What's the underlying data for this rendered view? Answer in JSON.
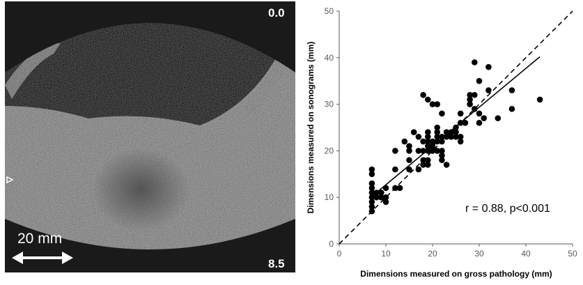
{
  "ultrasound": {
    "depth_top": "0.0",
    "depth_bottom": "8.5",
    "scale_label": "20 mm",
    "colors": {
      "background": "#1a1a1a",
      "tissue": "#7d7d7d",
      "text": "#ffffff"
    }
  },
  "chart_data": {
    "type": "scatter",
    "title": "",
    "xlabel": "Dimensions measured on gross pathology (mm)",
    "ylabel": "Dimensions measured on sonograms (mm)",
    "xlim": [
      0,
      50
    ],
    "ylim": [
      0,
      50
    ],
    "xticks": [
      "0",
      "10",
      "20",
      "30",
      "40",
      "50"
    ],
    "yticks": [
      "0",
      "10",
      "20",
      "30",
      "40",
      "50"
    ],
    "grid": false,
    "annotation": "r = 0.88, p<0.001",
    "identity_line": {
      "from": [
        0,
        0
      ],
      "to": [
        50,
        50
      ],
      "style": "dashed"
    },
    "regression_line": {
      "from": [
        7,
        10.2
      ],
      "to": [
        43,
        40.2
      ],
      "style": "solid"
    },
    "points": [
      [
        7,
        7
      ],
      [
        7,
        8
      ],
      [
        7,
        9
      ],
      [
        7,
        10
      ],
      [
        7,
        11
      ],
      [
        7,
        12
      ],
      [
        7,
        13
      ],
      [
        7,
        15
      ],
      [
        7,
        16
      ],
      [
        8,
        10
      ],
      [
        8,
        11
      ],
      [
        9,
        10
      ],
      [
        9,
        11
      ],
      [
        10,
        9
      ],
      [
        10,
        10
      ],
      [
        10,
        12
      ],
      [
        12,
        12
      ],
      [
        12,
        16
      ],
      [
        12,
        20
      ],
      [
        13,
        12
      ],
      [
        14,
        22
      ],
      [
        15,
        16
      ],
      [
        15,
        18
      ],
      [
        15,
        20
      ],
      [
        15,
        21
      ],
      [
        16,
        24
      ],
      [
        17,
        16
      ],
      [
        17,
        20
      ],
      [
        17,
        23
      ],
      [
        18,
        17
      ],
      [
        18,
        18
      ],
      [
        18,
        20
      ],
      [
        18,
        22
      ],
      [
        18,
        32
      ],
      [
        19,
        17
      ],
      [
        19,
        18
      ],
      [
        19,
        20
      ],
      [
        19,
        21
      ],
      [
        19,
        22
      ],
      [
        19,
        23
      ],
      [
        19,
        24
      ],
      [
        19,
        31
      ],
      [
        20,
        20
      ],
      [
        20,
        21
      ],
      [
        20,
        22
      ],
      [
        20,
        30
      ],
      [
        21,
        20
      ],
      [
        21,
        22
      ],
      [
        21,
        23
      ],
      [
        21,
        24
      ],
      [
        21,
        25
      ],
      [
        21,
        30
      ],
      [
        22,
        18
      ],
      [
        22,
        19
      ],
      [
        22,
        20
      ],
      [
        22,
        22
      ],
      [
        22,
        23
      ],
      [
        22,
        28
      ],
      [
        23,
        17
      ],
      [
        23,
        23
      ],
      [
        23,
        24
      ],
      [
        24,
        23
      ],
      [
        24,
        24
      ],
      [
        25,
        23
      ],
      [
        25,
        24
      ],
      [
        25,
        25
      ],
      [
        26,
        22
      ],
      [
        26,
        23
      ],
      [
        26,
        26
      ],
      [
        26,
        28
      ],
      [
        27,
        26
      ],
      [
        28,
        30
      ],
      [
        28,
        31
      ],
      [
        28,
        32
      ],
      [
        29,
        29
      ],
      [
        29,
        32
      ],
      [
        29,
        39
      ],
      [
        30,
        26
      ],
      [
        30,
        28
      ],
      [
        30,
        35
      ],
      [
        31,
        27
      ],
      [
        32,
        33
      ],
      [
        32,
        38
      ],
      [
        34,
        27
      ],
      [
        37,
        29
      ],
      [
        37,
        33
      ],
      [
        43,
        31
      ]
    ]
  }
}
